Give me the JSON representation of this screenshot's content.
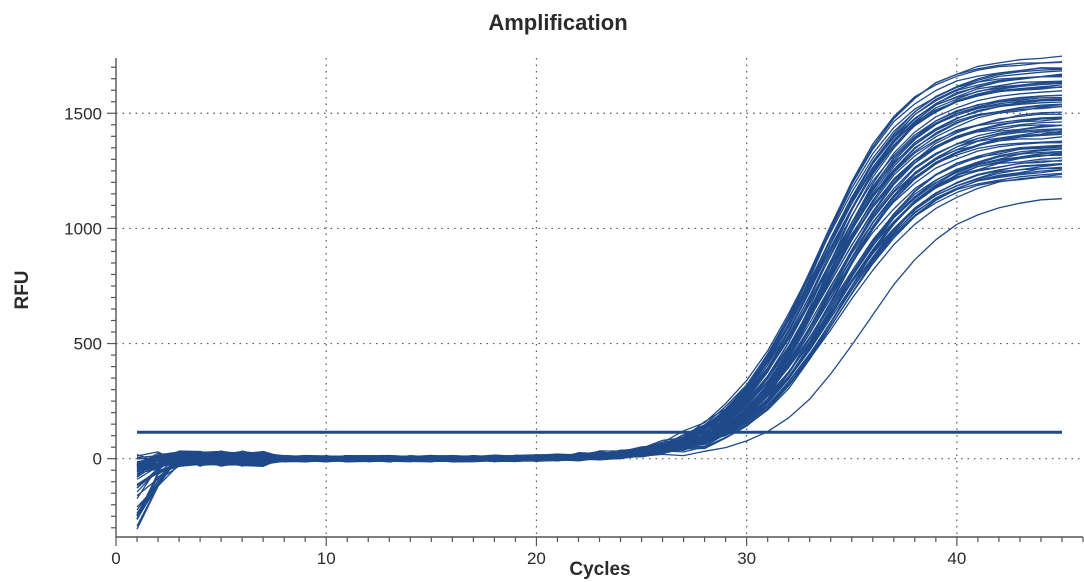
{
  "chart_data": {
    "type": "line",
    "title": "Amplification",
    "xlabel": "Cycles",
    "ylabel": "RFU",
    "xlim": [
      0,
      46
    ],
    "ylim": [
      -340,
      1740
    ],
    "xticks": [
      0,
      10,
      20,
      30,
      40
    ],
    "yticks": [
      0,
      500,
      1000,
      1500
    ],
    "grid": true,
    "legend": "none",
    "colors": {
      "curve": "#1f4a8a",
      "threshold": "#1f4a8a"
    },
    "cycles": {
      "start": 1,
      "end": 45
    },
    "threshold": 115,
    "curve_count": 74,
    "plateau_range": [
      1090,
      1650
    ],
    "midpoint_cycle_range": [
      33.0,
      35.6
    ],
    "outlier_curve": {
      "midpoint_cycle": 35.6,
      "plateau": 1090
    },
    "baseline_noise_early_min": -300
  }
}
